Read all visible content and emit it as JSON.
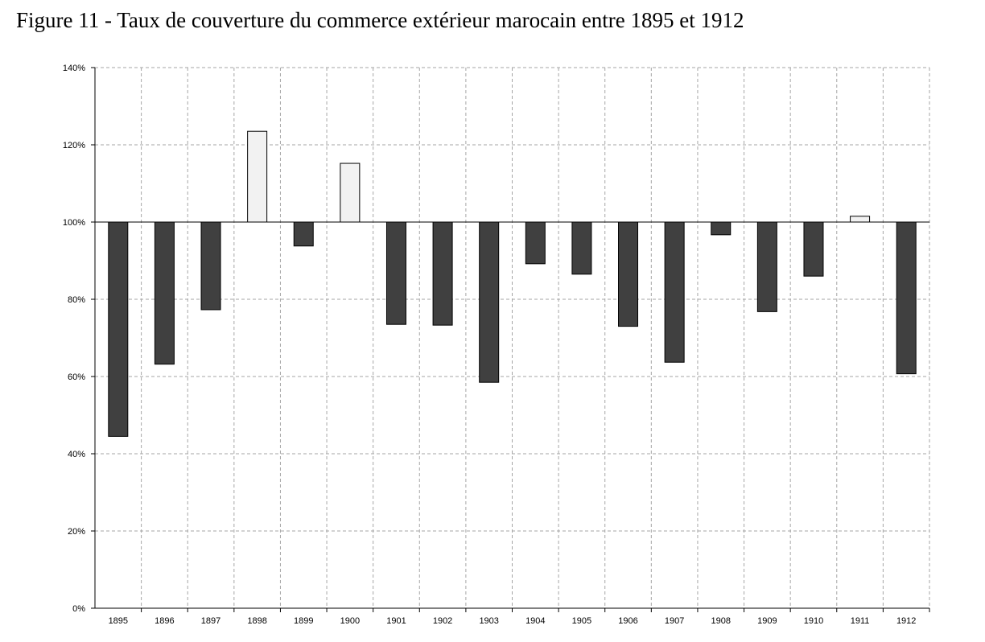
{
  "chart_data": {
    "type": "bar",
    "title": "Figure 11 - Taux de couverture du commerce extérieur marocain entre 1895 et 1912",
    "xlabel": "",
    "ylabel": "",
    "baseline": 100,
    "ylim": [
      0,
      140
    ],
    "yticks": [
      0,
      20,
      40,
      60,
      80,
      100,
      120,
      140
    ],
    "ytick_labels": [
      "0%",
      "20%",
      "40%",
      "60%",
      "80%",
      "100%",
      "120%",
      "140%"
    ],
    "grid": true,
    "categories": [
      "1895",
      "1896",
      "1897",
      "1898",
      "1899",
      "1900",
      "1901",
      "1902",
      "1903",
      "1904",
      "1905",
      "1906",
      "1907",
      "1908",
      "1909",
      "1910",
      "1911",
      "1912"
    ],
    "values": [
      44.5,
      63.2,
      77.3,
      123.5,
      93.8,
      115.2,
      73.5,
      73.3,
      58.5,
      89.2,
      86.5,
      73.0,
      63.7,
      96.7,
      76.8,
      86.0,
      101.5,
      60.7
    ],
    "colors": {
      "below": "#404040",
      "above": "#f2f2f2",
      "edge": "#000000",
      "grid": "#a6a6a6"
    }
  }
}
